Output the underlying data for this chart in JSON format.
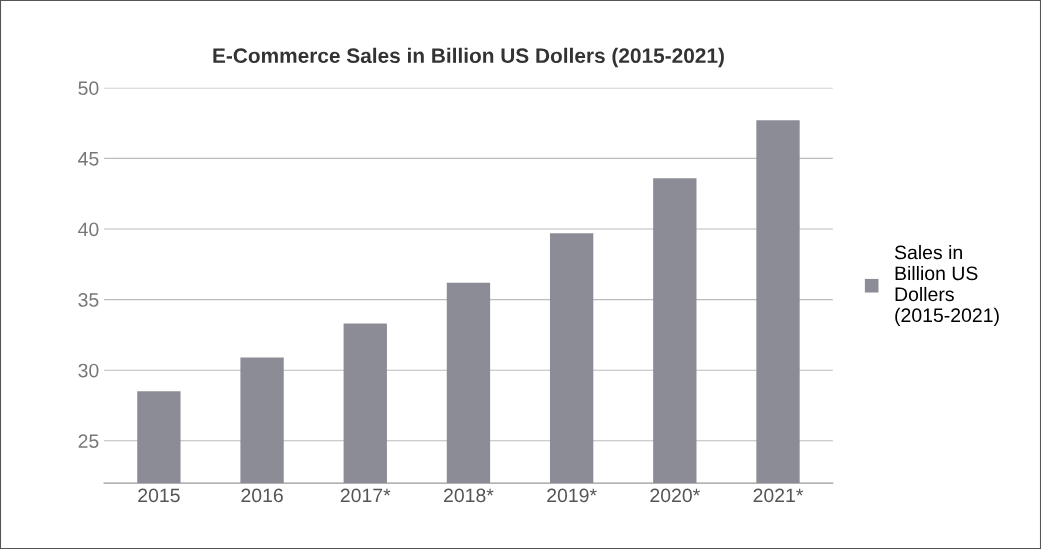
{
  "chart_data": {
    "type": "bar",
    "title": "E-Commerce Sales in Billion US Dollers (2015-2021)",
    "categories": [
      "2015",
      "2016",
      "2017*",
      "2018*",
      "2019*",
      "2020*",
      "2021*"
    ],
    "series": [
      {
        "name": "Sales in Billion US Dollers (2015-2021)",
        "color": "#8c8c96",
        "values": [
          28.5,
          30.9,
          33.3,
          36.2,
          39.7,
          43.6,
          47.7
        ]
      }
    ],
    "ylim": [
      22,
      50
    ],
    "yticks": [
      25,
      30,
      35,
      40,
      45,
      50
    ],
    "grid": "y",
    "legend": "right"
  }
}
